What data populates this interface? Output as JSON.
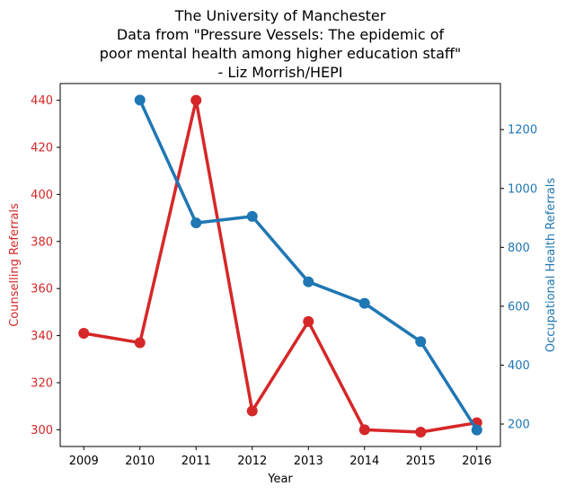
{
  "chart_data": {
    "type": "line",
    "title_lines": [
      "The University of Manchester",
      "Data from \"Pressure Vessels: The epidemic of",
      "poor mental health among higher education staff\"",
      "- Liz Morrish/HEPI"
    ],
    "xlabel": "Year",
    "ylabel_left": "Counselling Referrals",
    "ylabel_right": "Occupational Health Referrals",
    "x": [
      "2009",
      "2010",
      "2011",
      "2012",
      "2013",
      "2014",
      "2015",
      "2016"
    ],
    "xlim": [
      2008.58,
      2016.42
    ],
    "ylim_left": [
      292.9,
      447.1
    ],
    "ylim_right": [
      123.8,
      1356.2
    ],
    "yticks_left": [
      300,
      320,
      340,
      360,
      380,
      400,
      420,
      440
    ],
    "yticks_right": [
      200,
      400,
      600,
      800,
      1000,
      1200
    ],
    "grid": false,
    "series": [
      {
        "name": "Counselling Referrals",
        "axis": "left",
        "color": "#d62728",
        "x": [
          2009,
          2010,
          2011,
          2012,
          2013,
          2014,
          2015,
          2016
        ],
        "values": [
          341,
          337,
          440,
          308,
          346,
          300,
          299,
          303
        ]
      },
      {
        "name": "Occupational Health Referrals",
        "axis": "right",
        "color": "#1f77b4",
        "x": [
          2010,
          2011,
          2012,
          2013,
          2014,
          2015,
          2016
        ],
        "values": [
          1300,
          883,
          905,
          683,
          610,
          480,
          180
        ]
      }
    ]
  }
}
